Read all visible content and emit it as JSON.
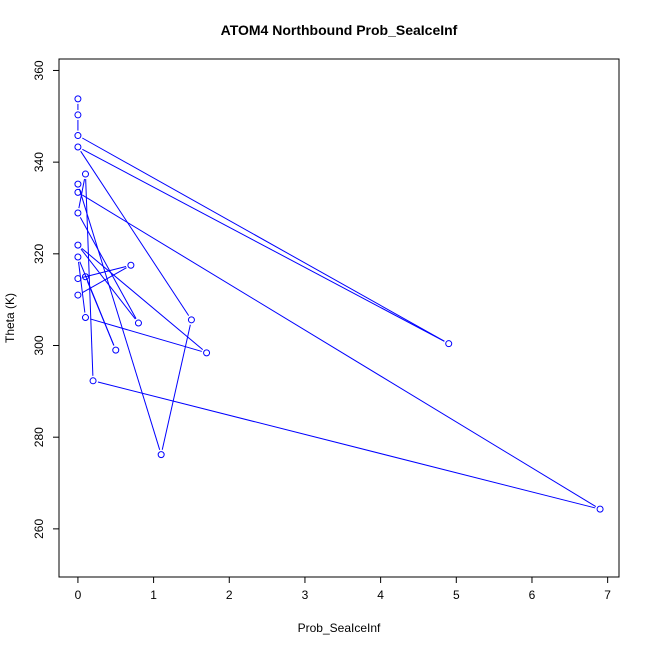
{
  "chart_data": {
    "type": "line",
    "title": "ATOM4 Northbound Prob_SeaIceInf",
    "xlabel": "Prob_SeaIceInf",
    "ylabel": "Theta (K)",
    "xlim": [
      -0.25,
      7.15
    ],
    "ylim": [
      249.5,
      362.5
    ],
    "x_ticks": [
      0,
      1,
      2,
      3,
      4,
      5,
      6,
      7
    ],
    "y_ticks": [
      260,
      280,
      300,
      320,
      340,
      360
    ],
    "grid": false,
    "legend": "none",
    "series": [
      {
        "color": "#0000ff",
        "marker": "open-circle",
        "points": [
          {
            "x": 0.0,
            "y": 353.8
          },
          {
            "x": 0.0,
            "y": 350.3
          },
          {
            "x": 0.0,
            "y": 345.8
          },
          {
            "x": 4.9,
            "y": 300.4
          },
          {
            "x": 0.0,
            "y": 343.3
          },
          {
            "x": 1.5,
            "y": 305.6
          },
          {
            "x": 1.1,
            "y": 276.2
          },
          {
            "x": 0.0,
            "y": 335.2
          },
          {
            "x": 0.0,
            "y": 333.4
          },
          {
            "x": 6.9,
            "y": 264.3
          },
          {
            "x": 0.2,
            "y": 292.3
          },
          {
            "x": 0.1,
            "y": 337.4
          },
          {
            "x": 0.0,
            "y": 328.9
          },
          {
            "x": 0.8,
            "y": 304.9
          },
          {
            "x": 0.0,
            "y": 321.9
          },
          {
            "x": 1.7,
            "y": 298.4
          },
          {
            "x": 0.1,
            "y": 306.1
          },
          {
            "x": 0.0,
            "y": 319.3
          },
          {
            "x": 0.5,
            "y": 299.0
          },
          {
            "x": 0.1,
            "y": 315.0
          },
          {
            "x": 0.0,
            "y": 314.6
          },
          {
            "x": 0.7,
            "y": 317.5
          },
          {
            "x": 0.0,
            "y": 311.0
          }
        ]
      }
    ]
  }
}
